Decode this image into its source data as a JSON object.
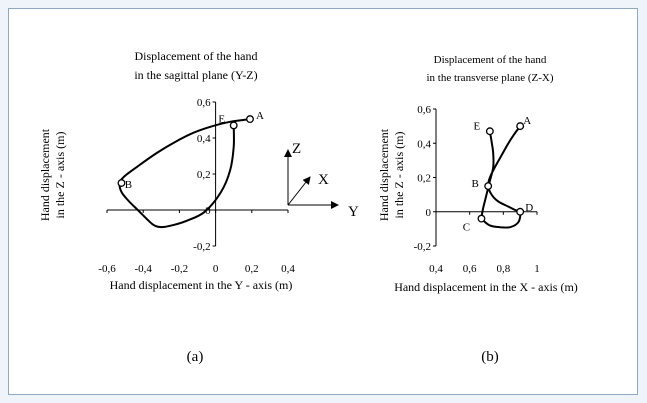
{
  "chart_data": [
    {
      "type": "line",
      "title": [
        "Displacement of the hand",
        "in the sagittal plane (Y-Z)"
      ],
      "xlabel": "Hand displacement in the Y - axis (m)",
      "ylabel": [
        "Hand displacement",
        "in the Z - axis (m)"
      ],
      "xlim": [
        -0.6,
        0.4
      ],
      "ylim": [
        -0.2,
        0.6
      ],
      "xticks": [
        -0.6,
        -0.4,
        -0.2,
        0,
        0.2,
        0.4
      ],
      "xtick_labels": [
        "-0,6",
        "-0,4",
        "-0,2",
        "0",
        "0,2",
        "0,4"
      ],
      "yticks": [
        -0.2,
        0,
        0.2,
        0.4,
        0.6
      ],
      "ytick_labels": [
        "-0,2",
        "0",
        "0,2",
        "0,4",
        "0,6"
      ],
      "grid": false,
      "caption": "(a)",
      "series": [
        {
          "x": [
            0.19,
            0.08,
            -0.02,
            -0.12,
            -0.22,
            -0.32,
            -0.42,
            -0.5,
            -0.53,
            -0.52,
            -0.48,
            -0.43,
            -0.38,
            -0.34,
            -0.3,
            -0.24,
            -0.16,
            -0.06,
            0.03,
            0.08,
            0.1,
            0.1
          ],
          "y": [
            0.505,
            0.49,
            0.465,
            0.43,
            0.38,
            0.32,
            0.25,
            0.19,
            0.15,
            0.1,
            0.05,
            0.0,
            -0.05,
            -0.085,
            -0.095,
            -0.085,
            -0.06,
            -0.01,
            0.1,
            0.22,
            0.35,
            0.47
          ]
        }
      ],
      "points": [
        {
          "label": "A",
          "x": 0.19,
          "y": 0.505
        },
        {
          "label": "E",
          "x": 0.1,
          "y": 0.47
        },
        {
          "label": "B",
          "x": -0.52,
          "y": 0.15
        }
      ],
      "axes_glyph": {
        "z": "Z",
        "x": "X",
        "y": "Y"
      }
    },
    {
      "type": "line",
      "title": [
        "Displacement of the hand",
        "in the transverse plane (Z-X)"
      ],
      "xlabel": "Hand displacement in the X - axis (m)",
      "ylabel": [
        "Hand displacement",
        "in the Z - axis (m)"
      ],
      "xlim": [
        0.4,
        1.0
      ],
      "ylim": [
        -0.2,
        0.6
      ],
      "xticks": [
        0.4,
        0.6,
        0.8,
        1.0
      ],
      "xtick_labels": [
        "0,4",
        "0,6",
        "0,8",
        "1"
      ],
      "yticks": [
        -0.2,
        0,
        0.2,
        0.4,
        0.6
      ],
      "ytick_labels": [
        "-0,2",
        "0",
        "0,2",
        "0,4",
        "0,6"
      ],
      "grid": false,
      "caption": "(b)",
      "series": [
        {
          "x": [
            0.9,
            0.87,
            0.83,
            0.79,
            0.75,
            0.72,
            0.71,
            0.73,
            0.77,
            0.83,
            0.87,
            0.9,
            0.89,
            0.84,
            0.78,
            0.72,
            0.68,
            0.67,
            0.68,
            0.7,
            0.72,
            0.74,
            0.74,
            0.73,
            0.72
          ],
          "y": [
            0.5,
            0.46,
            0.4,
            0.33,
            0.26,
            0.2,
            0.15,
            0.1,
            0.06,
            0.03,
            0.01,
            0.0,
            -0.06,
            -0.09,
            -0.09,
            -0.08,
            -0.05,
            -0.04,
            0.02,
            0.1,
            0.18,
            0.26,
            0.34,
            0.41,
            0.47
          ]
        }
      ],
      "points": [
        {
          "label": "A",
          "x": 0.9,
          "y": 0.5
        },
        {
          "label": "E",
          "x": 0.72,
          "y": 0.47
        },
        {
          "label": "B",
          "x": 0.71,
          "y": 0.15
        },
        {
          "label": "D",
          "x": 0.9,
          "y": 0.0
        },
        {
          "label": "C",
          "x": 0.67,
          "y": -0.04
        }
      ]
    }
  ]
}
